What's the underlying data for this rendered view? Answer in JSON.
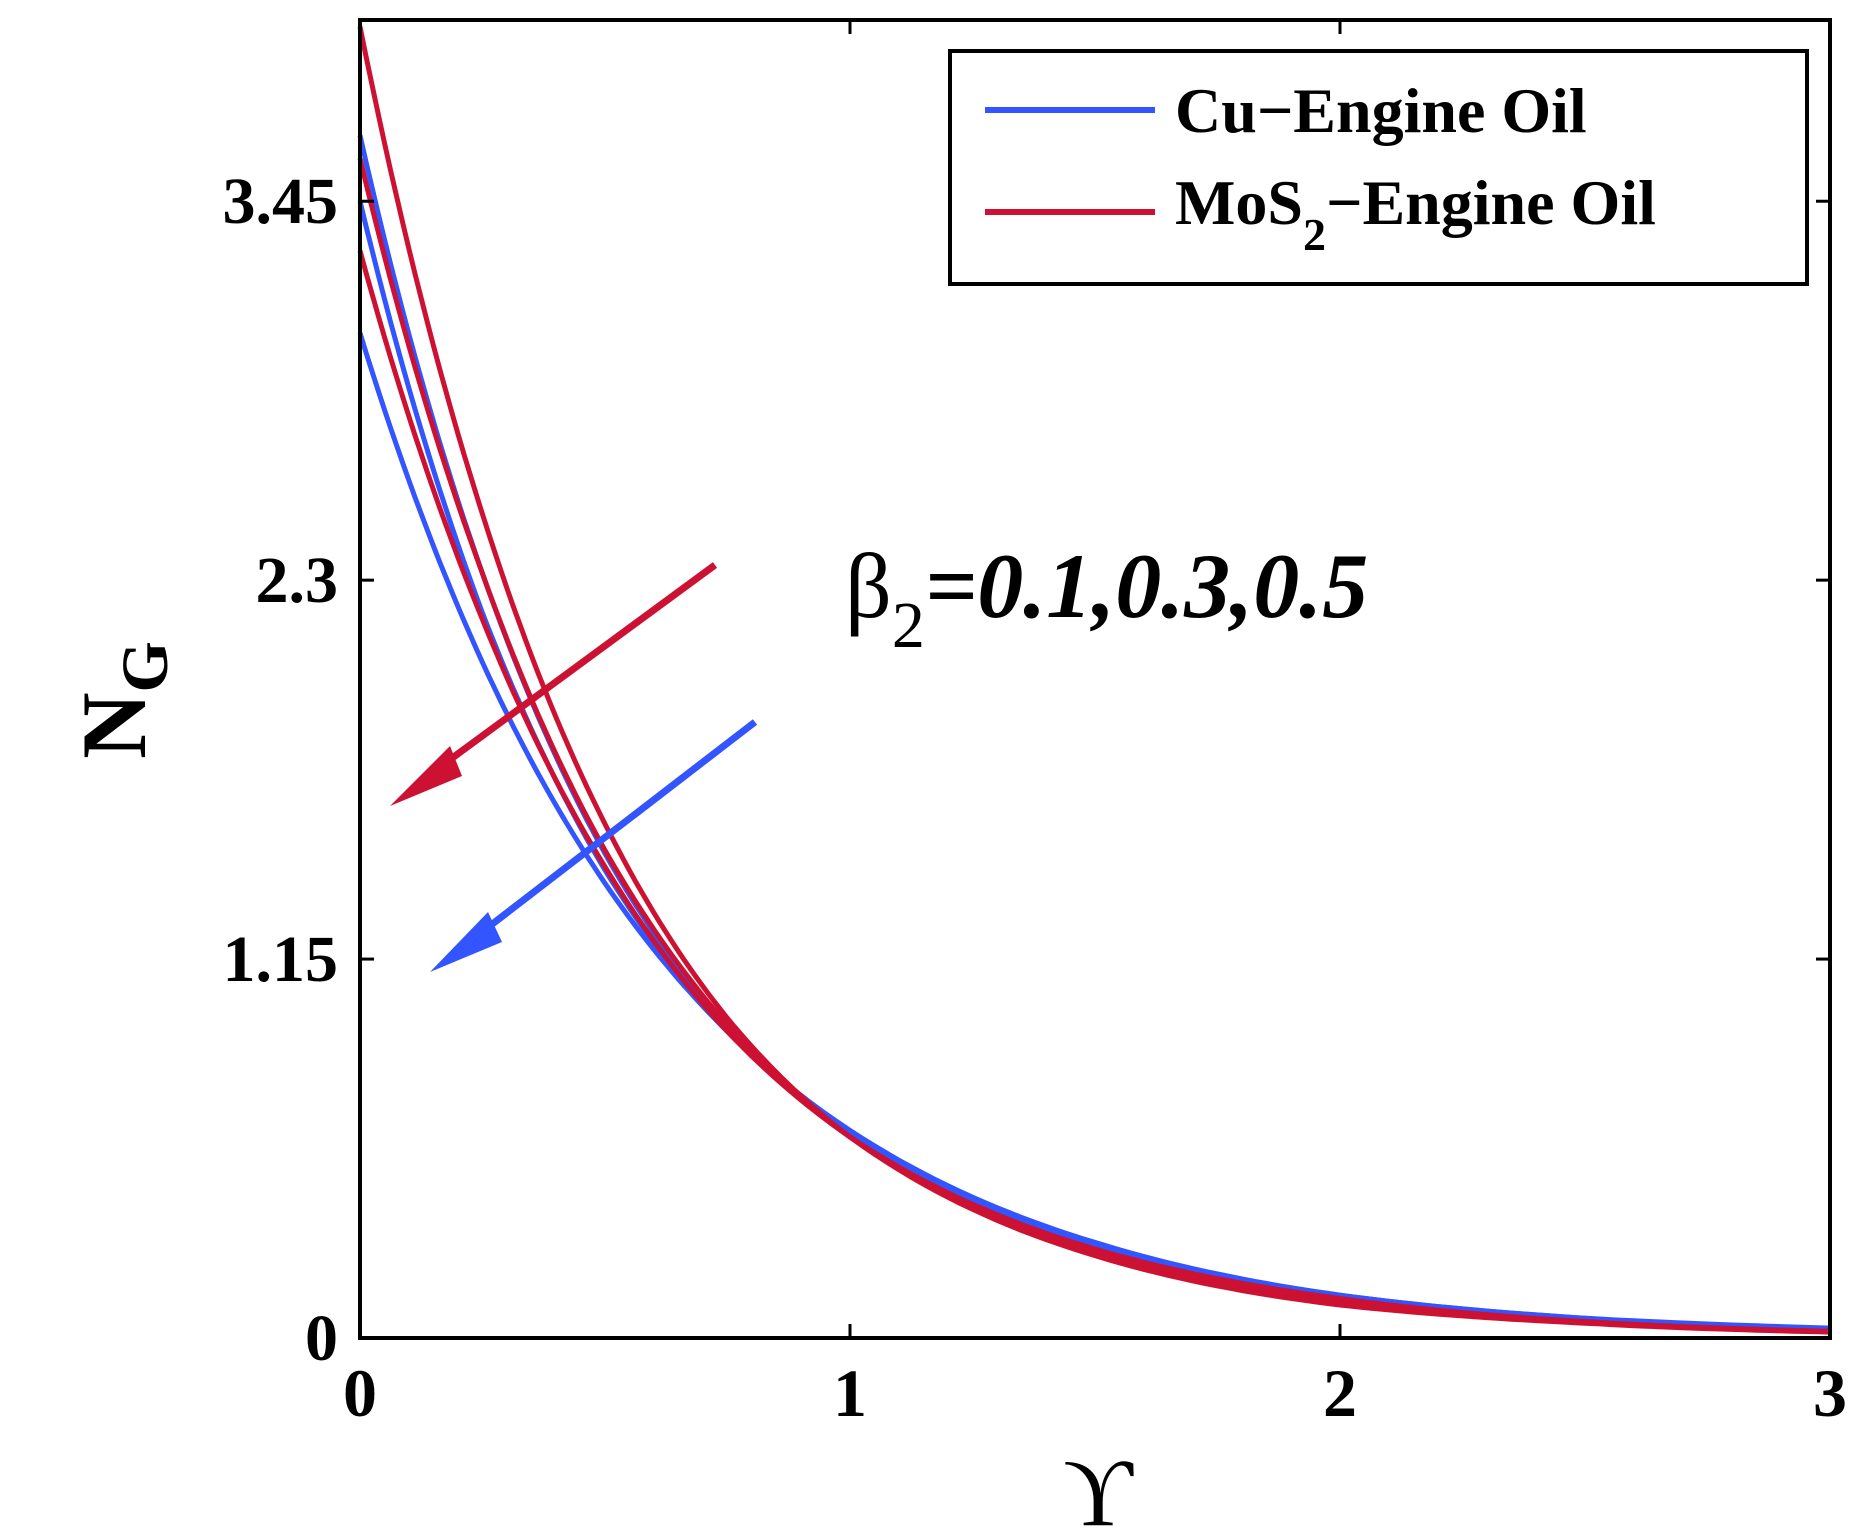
{
  "chart_data": {
    "type": "line",
    "title": "",
    "xlabel": "ϒ",
    "ylabel": {
      "main": "N",
      "sub": "G"
    },
    "xlim": [
      0,
      3
    ],
    "ylim": [
      0,
      4.0
    ],
    "xticks": [
      0,
      1,
      2,
      3
    ],
    "xtick_labels": [
      "0",
      "1",
      "2",
      "3"
    ],
    "yticks": [
      0,
      1.15,
      2.3,
      3.45
    ],
    "ytick_labels": [
      "0",
      "1.15",
      "2.3",
      "3.45"
    ],
    "grid": false,
    "legend_position": "top-right",
    "legend": [
      {
        "label": "Cu−Engine Oil",
        "color": "#3355ff"
      },
      {
        "label_main": "MoS",
        "label_sub": "2",
        "label_rest": "−Engine Oil",
        "color": "#cc1133"
      }
    ],
    "annotation": {
      "symbol": "β",
      "sub": "2",
      "text": "=0.1,0.3,0.5"
    },
    "series": [
      {
        "group": "Cu−Engine Oil",
        "color": "#3355ff",
        "x": [
          0,
          0.25,
          0.5,
          0.75,
          1,
          1.5,
          2,
          2.5,
          3
        ],
        "y": [
          3.05,
          2.05,
          1.38,
          0.93,
          0.63,
          0.29,
          0.13,
          0.06,
          0.03
        ]
      },
      {
        "group": "Cu−Engine Oil",
        "color": "#3355ff",
        "x": [
          0,
          0.25,
          0.5,
          0.75,
          1,
          1.5,
          2,
          2.5,
          3
        ],
        "y": [
          3.45,
          2.2,
          1.42,
          0.93,
          0.62,
          0.28,
          0.13,
          0.06,
          0.025
        ]
      },
      {
        "group": "Cu−Engine Oil",
        "color": "#3355ff",
        "x": [
          0,
          0.25,
          0.5,
          0.75,
          1,
          1.5,
          2,
          2.5,
          3
        ],
        "y": [
          3.65,
          2.32,
          1.47,
          0.94,
          0.61,
          0.27,
          0.12,
          0.055,
          0.025
        ]
      },
      {
        "group": "MoS2−Engine Oil",
        "color": "#cc1133",
        "x": [
          0,
          0.25,
          0.5,
          0.75,
          1,
          1.5,
          2,
          2.5,
          3
        ],
        "y": [
          3.3,
          2.18,
          1.43,
          0.93,
          0.61,
          0.27,
          0.12,
          0.05,
          0.02
        ]
      },
      {
        "group": "MoS2−Engine Oil",
        "color": "#cc1133",
        "x": [
          0,
          0.25,
          0.5,
          0.75,
          1,
          1.5,
          2,
          2.5,
          3
        ],
        "y": [
          3.58,
          2.32,
          1.48,
          0.95,
          0.61,
          0.26,
          0.11,
          0.048,
          0.02
        ]
      },
      {
        "group": "MoS2−Engine Oil",
        "color": "#cc1133",
        "x": [
          0,
          0.25,
          0.5,
          0.75,
          1,
          1.5,
          2,
          2.5,
          3
        ],
        "y": [
          3.98,
          2.5,
          1.56,
          0.97,
          0.61,
          0.25,
          0.1,
          0.045,
          0.018
        ]
      }
    ]
  }
}
